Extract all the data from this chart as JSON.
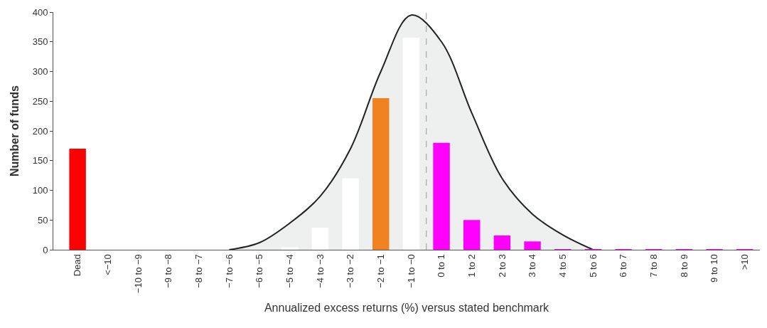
{
  "chart_data": {
    "type": "bar",
    "xlabel": "Annualized excess returns (%) versus stated benchmark",
    "ylabel": "Number of funds",
    "categories": [
      "Dead",
      "<−10",
      "−10 to −9",
      "−9 to −8",
      "−8 to −7",
      "−7 to −6",
      "−6 to −5",
      "−5 to −4",
      "−4 to −3",
      "−3 to −2",
      "−2 to −1",
      "−1 to −0",
      "0 to 1",
      "1 to 2",
      "2 to 3",
      "3 to 4",
      "4 to 5",
      "5 to 6",
      "6 to 7",
      "7 to 8",
      "8 to 9",
      "9 to 10",
      ">10"
    ],
    "series": [
      {
        "type": "area",
        "color": "#eef0f0",
        "values": [
          null,
          null,
          null,
          null,
          null,
          0,
          12,
          45,
          90,
          170,
          300,
          395,
          350,
          230,
          120,
          60,
          25,
          0,
          null,
          null,
          null,
          null,
          null
        ]
      },
      {
        "colors": [
          "#ff0000",
          "#ffffff",
          "#ffffff",
          "#ffffff",
          "#ffffff",
          "#ffffff",
          "#ffffff",
          "#ffffff",
          "#ffffff",
          "#ffffff",
          "#f08222",
          "#ffffff",
          "#ff00ff",
          "#ff00ff",
          "#ff00ff",
          "#ff00ff",
          "#ff00ff",
          "#ff00ff",
          "#ff00ff",
          "#ff00ff",
          "#ff00ff",
          "#ff00ff",
          "#ff00ff"
        ],
        "values": [
          170,
          0,
          0,
          0,
          0,
          0,
          0,
          4,
          37,
          120,
          255,
          357,
          180,
          50,
          24,
          14,
          1,
          1,
          1,
          1,
          1,
          1,
          1
        ]
      }
    ],
    "ylim": [
      0,
      400
    ],
    "yticks": [
      0,
      50,
      100,
      150,
      200,
      250,
      300,
      350,
      400
    ]
  }
}
